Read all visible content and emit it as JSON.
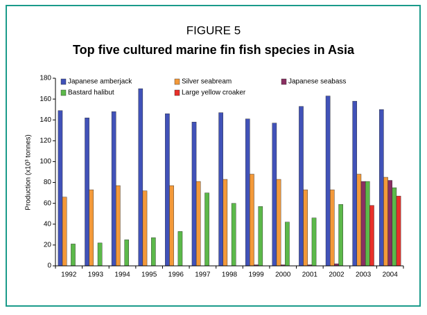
{
  "chart_data": {
    "type": "bar",
    "title": "FIGURE 5",
    "subtitle": "Top five cultured marine fin fish species in Asia",
    "y_label": "Production (x10³ tonnes)",
    "categories": [
      "1992",
      "1993",
      "1994",
      "1995",
      "1996",
      "1997",
      "1998",
      "1999",
      "2000",
      "2001",
      "2002",
      "2003",
      "2004"
    ],
    "series": [
      {
        "name": "Japanese amberjack",
        "color": "#4152b8",
        "values": [
          149,
          142,
          148,
          170,
          146,
          138,
          147,
          141,
          137,
          153,
          163,
          158,
          150
        ]
      },
      {
        "name": "Silver seabream",
        "color": "#f3993a",
        "values": [
          66,
          73,
          77,
          72,
          77,
          81,
          83,
          88,
          83,
          73,
          73,
          88,
          85
        ]
      },
      {
        "name": "Japanese seabass",
        "color": "#8a2f62",
        "values": [
          0,
          0,
          0,
          0,
          0,
          0,
          0,
          1,
          1,
          1,
          2,
          81,
          82
        ]
      },
      {
        "name": "Bastard halibut",
        "color": "#5cb94a",
        "values": [
          21,
          22,
          25,
          27,
          33,
          70,
          60,
          57,
          42,
          46,
          59,
          81,
          75
        ]
      },
      {
        "name": "Large yellow croaker",
        "color": "#e8302a",
        "values": [
          0,
          0,
          0,
          0,
          0,
          0,
          0,
          0,
          0,
          0,
          0,
          58,
          67
        ]
      }
    ],
    "ylim": [
      0,
      180
    ],
    "yticks": [
      0,
      20,
      40,
      60,
      80,
      100,
      120,
      140,
      160,
      180
    ]
  }
}
